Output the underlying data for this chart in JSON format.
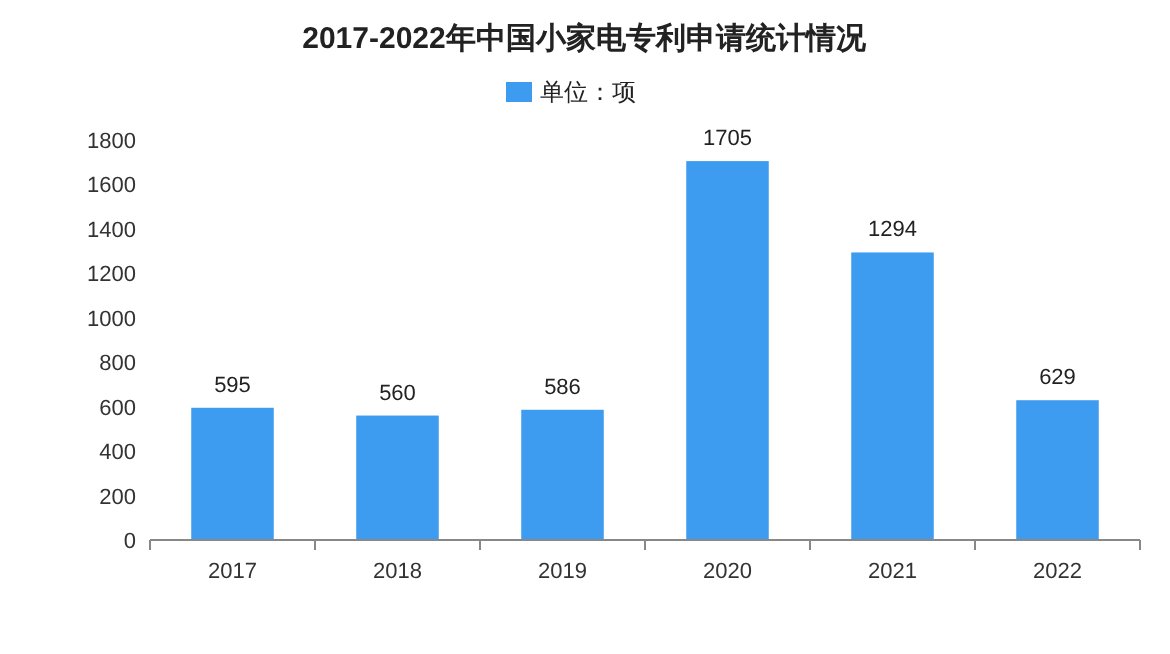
{
  "chart_data": {
    "type": "bar",
    "title": "2017-2022年中国小家电专利申请统计情况",
    "categories": [
      "2017",
      "2018",
      "2019",
      "2020",
      "2021",
      "2022"
    ],
    "series": [
      {
        "name": "单位：项",
        "color": "#3d9bf0",
        "values": [
          595,
          560,
          586,
          1705,
          1294,
          629
        ]
      }
    ],
    "ylim": [
      0,
      1800
    ],
    "yticks": [
      0,
      200,
      400,
      600,
      800,
      1000,
      1200,
      1400,
      1600,
      1800
    ],
    "data_labels": true,
    "legend": "top"
  }
}
